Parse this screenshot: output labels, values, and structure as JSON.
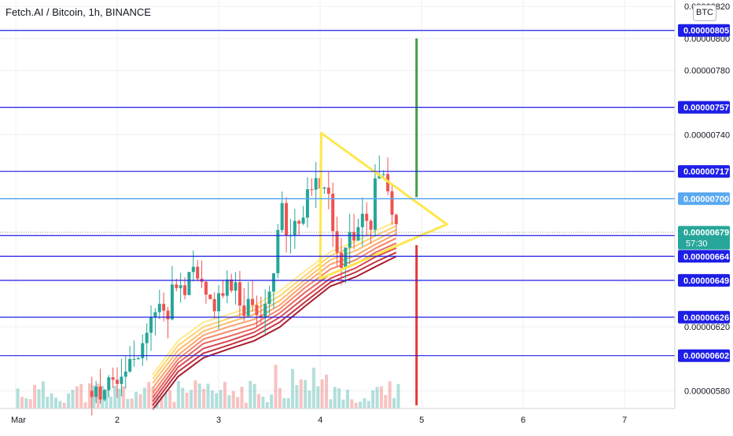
{
  "header": {
    "title": "Fetch.AI / Bitcoin, 1h, BINANCE",
    "currency_badge": "BTC"
  },
  "colors": {
    "background": "#ffffff",
    "grid": "#eef0f3",
    "level_line": "#1e1ee6",
    "current_line": "#5aa9f0",
    "candle_up": "#26a69a",
    "candle_down": "#ef5350",
    "triangle": "#ffe74d",
    "target_up": "#43a047",
    "target_down": "#e53935",
    "ribbon": [
      "#ffe98a",
      "#ffd36b",
      "#ffbd6b",
      "#fca26b",
      "#f5866a",
      "#e86760",
      "#d94a52",
      "#c3323f",
      "#a81f2c"
    ]
  },
  "chart_data": {
    "type": "candlestick",
    "title": "Fetch.AI / Bitcoin, 1h, BINANCE",
    "ylim": [
      5.69e-06,
      8.24e-06
    ],
    "y_ticks": [
      "0.00000580",
      "0.00000620",
      "0.00000740",
      "0.00000780",
      "0.00000800",
      "0.00000820"
    ],
    "x_ticks": [
      "Mar",
      "2",
      "3",
      "4",
      "5",
      "6",
      "7"
    ],
    "x_tick_days": [
      1,
      2,
      3,
      4,
      5,
      6,
      7
    ],
    "x_range_days": [
      1,
      7.65
    ],
    "horizontal_levels": [
      {
        "value": 8.05e-06,
        "label": "0.00000805"
      },
      {
        "value": 7.57e-06,
        "label": "0.00000757"
      },
      {
        "value": 7.17e-06,
        "label": "0.00000717"
      },
      {
        "value": 6.77e-06,
        "label": "0.00000677"
      },
      {
        "value": 6.64e-06,
        "label": "0.00000664"
      },
      {
        "value": 6.49e-06,
        "label": "0.00000649"
      },
      {
        "value": 6.26e-06,
        "label": "0.00000626"
      },
      {
        "value": 6.02e-06,
        "label": "0.00000602"
      }
    ],
    "current_level": {
      "value": 7e-06,
      "label": "0.00000700"
    },
    "last_price": {
      "value": 6.79e-06,
      "label": "0.00000679",
      "countdown": "57:30"
    },
    "price_trend": [
      [
        1.75,
        5.8e-06
      ],
      [
        2.05,
        5.9e-06
      ],
      [
        2.3,
        6.22e-06
      ],
      [
        2.55,
        6.37e-06
      ],
      [
        2.75,
        6.52e-06
      ],
      [
        2.9,
        6.35e-06
      ],
      [
        3.05,
        6.46e-06
      ],
      [
        3.2,
        6.4e-06
      ],
      [
        3.35,
        6.3e-06
      ],
      [
        3.5,
        6.42e-06
      ],
      [
        3.6,
        6.9e-06
      ],
      [
        3.75,
        6.78e-06
      ],
      [
        3.95,
        7.2e-06
      ],
      [
        4.1,
        6.95e-06
      ],
      [
        4.2,
        6.65e-06
      ],
      [
        4.3,
        6.75e-06
      ],
      [
        4.4,
        6.83e-06
      ],
      [
        4.5,
        6.78e-06
      ],
      [
        4.55,
        7.12e-06
      ],
      [
        4.65,
        7.05e-06
      ],
      [
        4.75,
        6.8e-06
      ]
    ],
    "triangle": [
      [
        4.01,
        7.41e-06
      ],
      [
        5.25,
        6.84e-06
      ],
      [
        4.0,
        6.5e-06
      ]
    ],
    "target_moves": [
      {
        "direction": "up",
        "x": 4.95,
        "from": 7.01e-06,
        "to": 8e-06
      },
      {
        "direction": "down",
        "x": 4.95,
        "from": 6.71e-06,
        "to": 5.71e-06
      }
    ],
    "ema_ribbon": {
      "count": 9,
      "base": [
        [
          2.35,
          5.68e-06
        ],
        [
          2.6,
          5.89e-06
        ],
        [
          2.85,
          6.01e-06
        ],
        [
          3.1,
          6.06e-06
        ],
        [
          3.35,
          6.11e-06
        ],
        [
          3.6,
          6.2e-06
        ],
        [
          3.85,
          6.33e-06
        ],
        [
          4.1,
          6.45e-06
        ],
        [
          4.35,
          6.51e-06
        ],
        [
          4.55,
          6.58e-06
        ],
        [
          4.75,
          6.64e-06
        ]
      ],
      "spacing": 2.75e-08
    }
  }
}
